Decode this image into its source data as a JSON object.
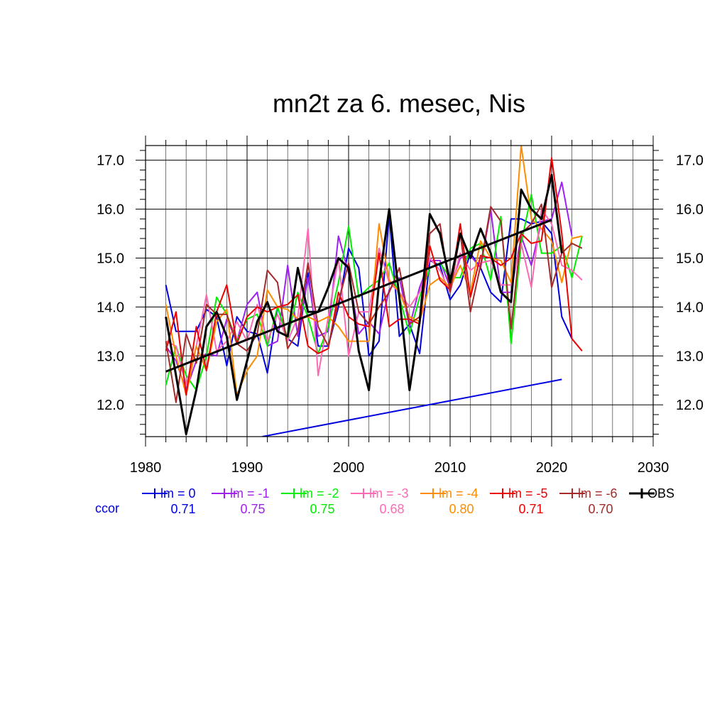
{
  "chart_data": {
    "type": "line",
    "title": "mn2t za 6. mesec, Nis",
    "xlabel": "",
    "ylabel": "",
    "xlim": [
      1980,
      2030
    ],
    "ylim": [
      11.35,
      17.3
    ],
    "x_ticks": [
      1980,
      1990,
      2000,
      2010,
      2020,
      2030
    ],
    "y_ticks": [
      "12.0",
      "13.0",
      "14.0",
      "15.0",
      "16.0",
      "17.0"
    ],
    "grid": true,
    "legend_position": "bottom",
    "ccor_label": "ccor",
    "series": [
      {
        "name": "lm = 0",
        "color": "#0000e0",
        "ccor": "0.71",
        "x_start": 1982,
        "values": [
          14.45,
          13.5,
          13.5,
          13.5,
          13.95,
          13.8,
          12.8,
          13.8,
          13.5,
          13.45,
          12.65,
          14.0,
          13.35,
          13.2,
          14.7,
          13.2,
          13.2,
          14.0,
          15.2,
          14.8,
          13.0,
          13.3,
          15.9,
          13.4,
          13.65,
          13.05,
          14.95,
          14.85,
          14.15,
          14.45,
          15.1,
          14.8,
          14.3,
          14.1,
          15.8,
          15.8,
          15.7,
          15.75,
          15.5,
          13.8,
          13.35
        ]
      },
      {
        "name": "lm = -1",
        "color": "#a020f0",
        "ccor": "0.75",
        "x_start": 1982,
        "values": [
          13.2,
          12.9,
          12.3,
          12.9,
          13.05,
          13.0,
          13.75,
          13.3,
          14.05,
          14.3,
          13.2,
          13.3,
          14.85,
          13.4,
          14.6,
          13.4,
          13.5,
          15.45,
          14.7,
          13.45,
          13.7,
          13.45,
          14.35,
          14.6,
          13.6,
          14.4,
          14.95,
          14.95,
          14.4,
          15.0,
          15.05,
          14.8,
          16.0,
          14.3,
          14.3,
          15.45,
          14.85,
          15.75,
          15.8,
          16.55,
          15.45
        ]
      },
      {
        "name": "lm = -2",
        "color": "#00ee00",
        "ccor": "0.75",
        "x_start": 1982,
        "values": [
          12.4,
          13.2,
          12.6,
          12.3,
          13.0,
          14.2,
          13.85,
          13.3,
          13.75,
          13.85,
          13.2,
          14.0,
          13.35,
          14.3,
          13.8,
          13.05,
          13.6,
          14.5,
          15.65,
          14.2,
          14.4,
          14.55,
          14.9,
          14.2,
          13.45,
          14.2,
          14.8,
          14.9,
          14.6,
          14.6,
          15.2,
          15.3,
          14.55,
          15.85,
          13.25,
          15.3,
          16.3,
          15.1,
          15.1,
          15.25,
          14.6,
          15.45
        ]
      },
      {
        "name": "lm = -3",
        "color": "#ff69b4",
        "ccor": "0.68",
        "x_start": 1982,
        "values": [
          13.3,
          13.2,
          12.4,
          13.2,
          14.25,
          13.1,
          13.3,
          13.7,
          13.3,
          14.05,
          13.3,
          13.85,
          13.3,
          13.8,
          15.6,
          12.6,
          13.8,
          15.0,
          13.0,
          13.9,
          13.9,
          15.2,
          14.5,
          14.3,
          14.0,
          14.3,
          15.0,
          14.75,
          14.3,
          15.1,
          14.75,
          14.9,
          14.95,
          14.45,
          14.45,
          15.3,
          14.4,
          16.0,
          15.7,
          14.85,
          14.75,
          14.55
        ]
      },
      {
        "name": "lm = -4",
        "color": "#ff8c00",
        "ccor": "0.80",
        "x_start": 1982,
        "values": [
          14.05,
          13.0,
          12.2,
          13.2,
          12.7,
          13.7,
          13.95,
          12.2,
          12.7,
          13.0,
          14.35,
          14.0,
          13.95,
          13.75,
          13.8,
          13.7,
          13.8,
          13.6,
          13.3,
          13.3,
          13.3,
          15.7,
          14.55,
          14.3,
          13.8,
          13.7,
          14.45,
          14.6,
          14.4,
          14.85,
          14.3,
          15.35,
          15.0,
          14.95,
          14.5,
          17.3,
          15.8,
          15.6,
          15.35,
          14.5,
          15.4,
          15.45
        ]
      },
      {
        "name": "lm = -5",
        "color": "#ee0000",
        "ccor": "0.71",
        "x_start": 1982,
        "values": [
          13.1,
          13.9,
          12.2,
          13.6,
          12.7,
          13.9,
          14.45,
          13.25,
          13.8,
          14.0,
          13.9,
          14.0,
          14.05,
          14.25,
          13.2,
          13.05,
          13.15,
          14.3,
          13.8,
          13.65,
          13.6,
          15.1,
          13.6,
          13.75,
          13.75,
          13.65,
          15.25,
          14.55,
          14.35,
          15.7,
          14.2,
          15.05,
          15.0,
          14.85,
          15.0,
          15.5,
          15.3,
          15.35,
          17.05,
          15.5,
          13.35,
          13.1
        ]
      },
      {
        "name": "lm = -6",
        "color": "#a52a2a",
        "ccor": "0.70",
        "x_start": 1982,
        "values": [
          13.3,
          12.05,
          13.45,
          12.85,
          14.05,
          13.85,
          13.85,
          13.25,
          13.1,
          13.45,
          14.75,
          14.5,
          13.15,
          13.5,
          14.9,
          13.6,
          13.2,
          14.1,
          14.9,
          13.9,
          13.65,
          14.0,
          14.3,
          14.8,
          13.65,
          13.8,
          15.5,
          15.7,
          14.3,
          15.5,
          13.9,
          14.85,
          16.05,
          15.75,
          13.55,
          15.5,
          15.7,
          16.1,
          14.4,
          15.1,
          15.3,
          15.2
        ]
      },
      {
        "name": "OBS",
        "color": "#000000",
        "ccor": "",
        "x_start": 1982,
        "values": [
          13.8,
          12.6,
          11.4,
          12.3,
          13.6,
          13.9,
          13.4,
          12.1,
          12.9,
          13.7,
          14.1,
          13.5,
          13.4,
          14.8,
          13.9,
          13.9,
          14.4,
          15.0,
          14.8,
          13.1,
          12.3,
          14.5,
          16.0,
          14.2,
          12.3,
          13.7,
          15.9,
          15.5,
          14.5,
          15.5,
          15.0,
          15.6,
          15.1,
          14.3,
          14.1,
          16.4,
          16.0,
          15.8,
          16.7,
          15.1
        ]
      }
    ],
    "trend_lines": [
      {
        "color": "#000000",
        "x": [
          1982,
          2020
        ],
        "y": [
          12.68,
          15.78
        ]
      },
      {
        "color": "#0000e0",
        "x": [
          1991.5,
          2021
        ],
        "y": [
          11.35,
          12.52
        ]
      }
    ]
  }
}
